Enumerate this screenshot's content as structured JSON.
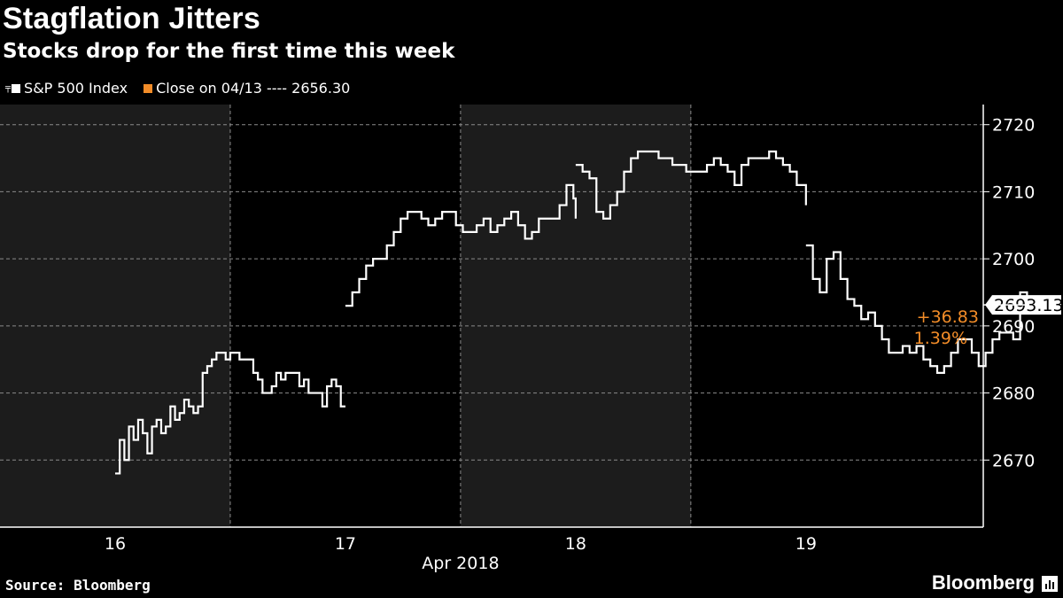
{
  "title": "Stagflation Jitters",
  "subtitle": "Stocks drop for the first time this week",
  "legend": {
    "series_label": "S&P 500 Index",
    "close_label": "Close on 04/13 ---- 2656.30",
    "series_color": "#ffffff",
    "close_color": "#f28c28"
  },
  "source": "Source: Bloomberg",
  "brand": "Bloomberg",
  "last_value_label": "2693.13",
  "change_abs": "+36.83",
  "change_pct": "1.39%",
  "colors": {
    "background": "#000000",
    "shade": "#1c1c1c",
    "line": "#ffffff",
    "accent": "#f28c28"
  },
  "chart_data": {
    "type": "line",
    "title": "Stagflation Jitters",
    "subtitle": "Stocks drop for the first time this week",
    "xlabel": "Apr 2018",
    "ylabel": "",
    "ylim": [
      2660,
      2723
    ],
    "yticks": [
      2670,
      2680,
      2690,
      2700,
      2710,
      2720
    ],
    "xticks": [
      "16",
      "17",
      "18",
      "19"
    ],
    "x_month_label": "Apr 2018",
    "grid": true,
    "legend_position": "top-left",
    "reference_close": 2656.3,
    "last_value": 2693.13,
    "series": [
      {
        "name": "S&P 500 Index",
        "color": "#ffffff",
        "segments": [
          [
            [
              16.0,
              2668
            ],
            [
              16.02,
              2673
            ],
            [
              16.04,
              2670
            ],
            [
              16.06,
              2675
            ],
            [
              16.08,
              2673
            ],
            [
              16.1,
              2676
            ],
            [
              16.12,
              2674
            ],
            [
              16.14,
              2671
            ],
            [
              16.16,
              2675
            ],
            [
              16.18,
              2676
            ],
            [
              16.2,
              2674
            ],
            [
              16.22,
              2675
            ],
            [
              16.24,
              2678
            ],
            [
              16.26,
              2676
            ],
            [
              16.28,
              2677
            ],
            [
              16.3,
              2679
            ],
            [
              16.32,
              2678
            ],
            [
              16.34,
              2677
            ],
            [
              16.36,
              2678
            ],
            [
              16.38,
              2683
            ],
            [
              16.4,
              2684
            ],
            [
              16.42,
              2685
            ],
            [
              16.44,
              2686
            ],
            [
              16.46,
              2686
            ],
            [
              16.48,
              2685
            ],
            [
              16.5,
              2686
            ],
            [
              16.52,
              2686
            ],
            [
              16.54,
              2685
            ],
            [
              16.56,
              2685
            ],
            [
              16.58,
              2685
            ],
            [
              16.6,
              2683
            ],
            [
              16.62,
              2682
            ],
            [
              16.64,
              2680
            ],
            [
              16.66,
              2680
            ],
            [
              16.68,
              2681
            ],
            [
              16.7,
              2683
            ],
            [
              16.72,
              2682
            ],
            [
              16.74,
              2683
            ],
            [
              16.76,
              2683
            ],
            [
              16.78,
              2683
            ],
            [
              16.8,
              2681
            ],
            [
              16.82,
              2682
            ],
            [
              16.84,
              2680
            ],
            [
              16.86,
              2680
            ],
            [
              16.88,
              2680
            ],
            [
              16.9,
              2678
            ],
            [
              16.92,
              2681
            ],
            [
              16.94,
              2682
            ],
            [
              16.96,
              2681
            ],
            [
              16.98,
              2678
            ],
            [
              17.0,
              2678
            ]
          ],
          [
            [
              17.0,
              2693
            ],
            [
              17.03,
              2695
            ],
            [
              17.06,
              2697
            ],
            [
              17.09,
              2699
            ],
            [
              17.12,
              2700
            ],
            [
              17.15,
              2700
            ],
            [
              17.18,
              2702
            ],
            [
              17.21,
              2704
            ],
            [
              17.24,
              2706
            ],
            [
              17.27,
              2707
            ],
            [
              17.3,
              2707
            ],
            [
              17.33,
              2706
            ],
            [
              17.36,
              2705
            ],
            [
              17.39,
              2706
            ],
            [
              17.42,
              2707
            ],
            [
              17.45,
              2707
            ],
            [
              17.48,
              2705
            ],
            [
              17.51,
              2704
            ],
            [
              17.54,
              2704
            ],
            [
              17.57,
              2705
            ],
            [
              17.6,
              2706
            ],
            [
              17.63,
              2704
            ],
            [
              17.66,
              2705
            ],
            [
              17.69,
              2706
            ],
            [
              17.72,
              2707
            ],
            [
              17.75,
              2705
            ],
            [
              17.78,
              2703
            ],
            [
              17.81,
              2704
            ],
            [
              17.84,
              2706
            ],
            [
              17.87,
              2706
            ],
            [
              17.9,
              2706
            ],
            [
              17.93,
              2708
            ],
            [
              17.96,
              2711
            ],
            [
              17.99,
              2709
            ],
            [
              18.0,
              2706
            ]
          ],
          [
            [
              18.0,
              2714
            ],
            [
              18.03,
              2713
            ],
            [
              18.06,
              2712
            ],
            [
              18.09,
              2707
            ],
            [
              18.12,
              2706
            ],
            [
              18.15,
              2708
            ],
            [
              18.18,
              2710
            ],
            [
              18.21,
              2713
            ],
            [
              18.24,
              2715
            ],
            [
              18.27,
              2716
            ],
            [
              18.3,
              2716
            ],
            [
              18.33,
              2716
            ],
            [
              18.36,
              2715
            ],
            [
              18.39,
              2715
            ],
            [
              18.42,
              2714
            ],
            [
              18.45,
              2714
            ],
            [
              18.48,
              2713
            ],
            [
              18.51,
              2713
            ],
            [
              18.54,
              2713
            ],
            [
              18.57,
              2714
            ],
            [
              18.6,
              2715
            ],
            [
              18.63,
              2714
            ],
            [
              18.66,
              2713
            ],
            [
              18.69,
              2711
            ],
            [
              18.72,
              2714
            ],
            [
              18.75,
              2715
            ],
            [
              18.78,
              2715
            ],
            [
              18.81,
              2715
            ],
            [
              18.84,
              2716
            ],
            [
              18.87,
              2715
            ],
            [
              18.9,
              2714
            ],
            [
              18.93,
              2713
            ],
            [
              18.96,
              2711
            ],
            [
              19.0,
              2708
            ]
          ],
          [
            [
              19.0,
              2702
            ],
            [
              19.03,
              2697
            ],
            [
              19.06,
              2695
            ],
            [
              19.09,
              2700
            ],
            [
              19.12,
              2701
            ],
            [
              19.15,
              2697
            ],
            [
              19.18,
              2694
            ],
            [
              19.21,
              2693
            ],
            [
              19.24,
              2691
            ],
            [
              19.27,
              2692
            ],
            [
              19.3,
              2690
            ],
            [
              19.33,
              2688
            ],
            [
              19.36,
              2686
            ],
            [
              19.39,
              2686
            ],
            [
              19.42,
              2687
            ],
            [
              19.45,
              2686
            ],
            [
              19.48,
              2687
            ],
            [
              19.51,
              2685
            ],
            [
              19.54,
              2684
            ],
            [
              19.57,
              2683
            ],
            [
              19.6,
              2684
            ],
            [
              19.63,
              2686
            ],
            [
              19.66,
              2688
            ],
            [
              19.69,
              2688
            ],
            [
              19.72,
              2686
            ],
            [
              19.75,
              2684
            ],
            [
              19.78,
              2686
            ],
            [
              19.81,
              2688
            ],
            [
              19.84,
              2689
            ],
            [
              19.87,
              2689
            ],
            [
              19.9,
              2688
            ],
            [
              19.93,
              2695
            ],
            [
              19.96,
              2693
            ],
            [
              19.99,
              2692
            ],
            [
              20.02,
              2693
            ]
          ]
        ]
      }
    ]
  }
}
